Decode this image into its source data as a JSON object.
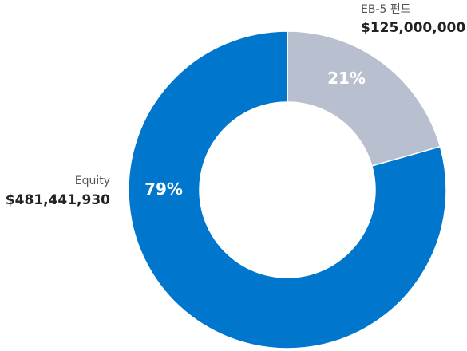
{
  "chart_data": {
    "type": "pie",
    "subtype": "donut",
    "start_angle_deg": 0,
    "direction": "clockwise",
    "categories": [
      "EB-5 펀드",
      "Equity"
    ],
    "values": [
      125000000,
      481441930
    ],
    "percent_labels": [
      "21%",
      "79%"
    ],
    "amount_labels": [
      "$125,000,000",
      "$481,441,930"
    ],
    "colors": [
      "#b8bfcf",
      "#0077cc"
    ],
    "legend": "none"
  }
}
